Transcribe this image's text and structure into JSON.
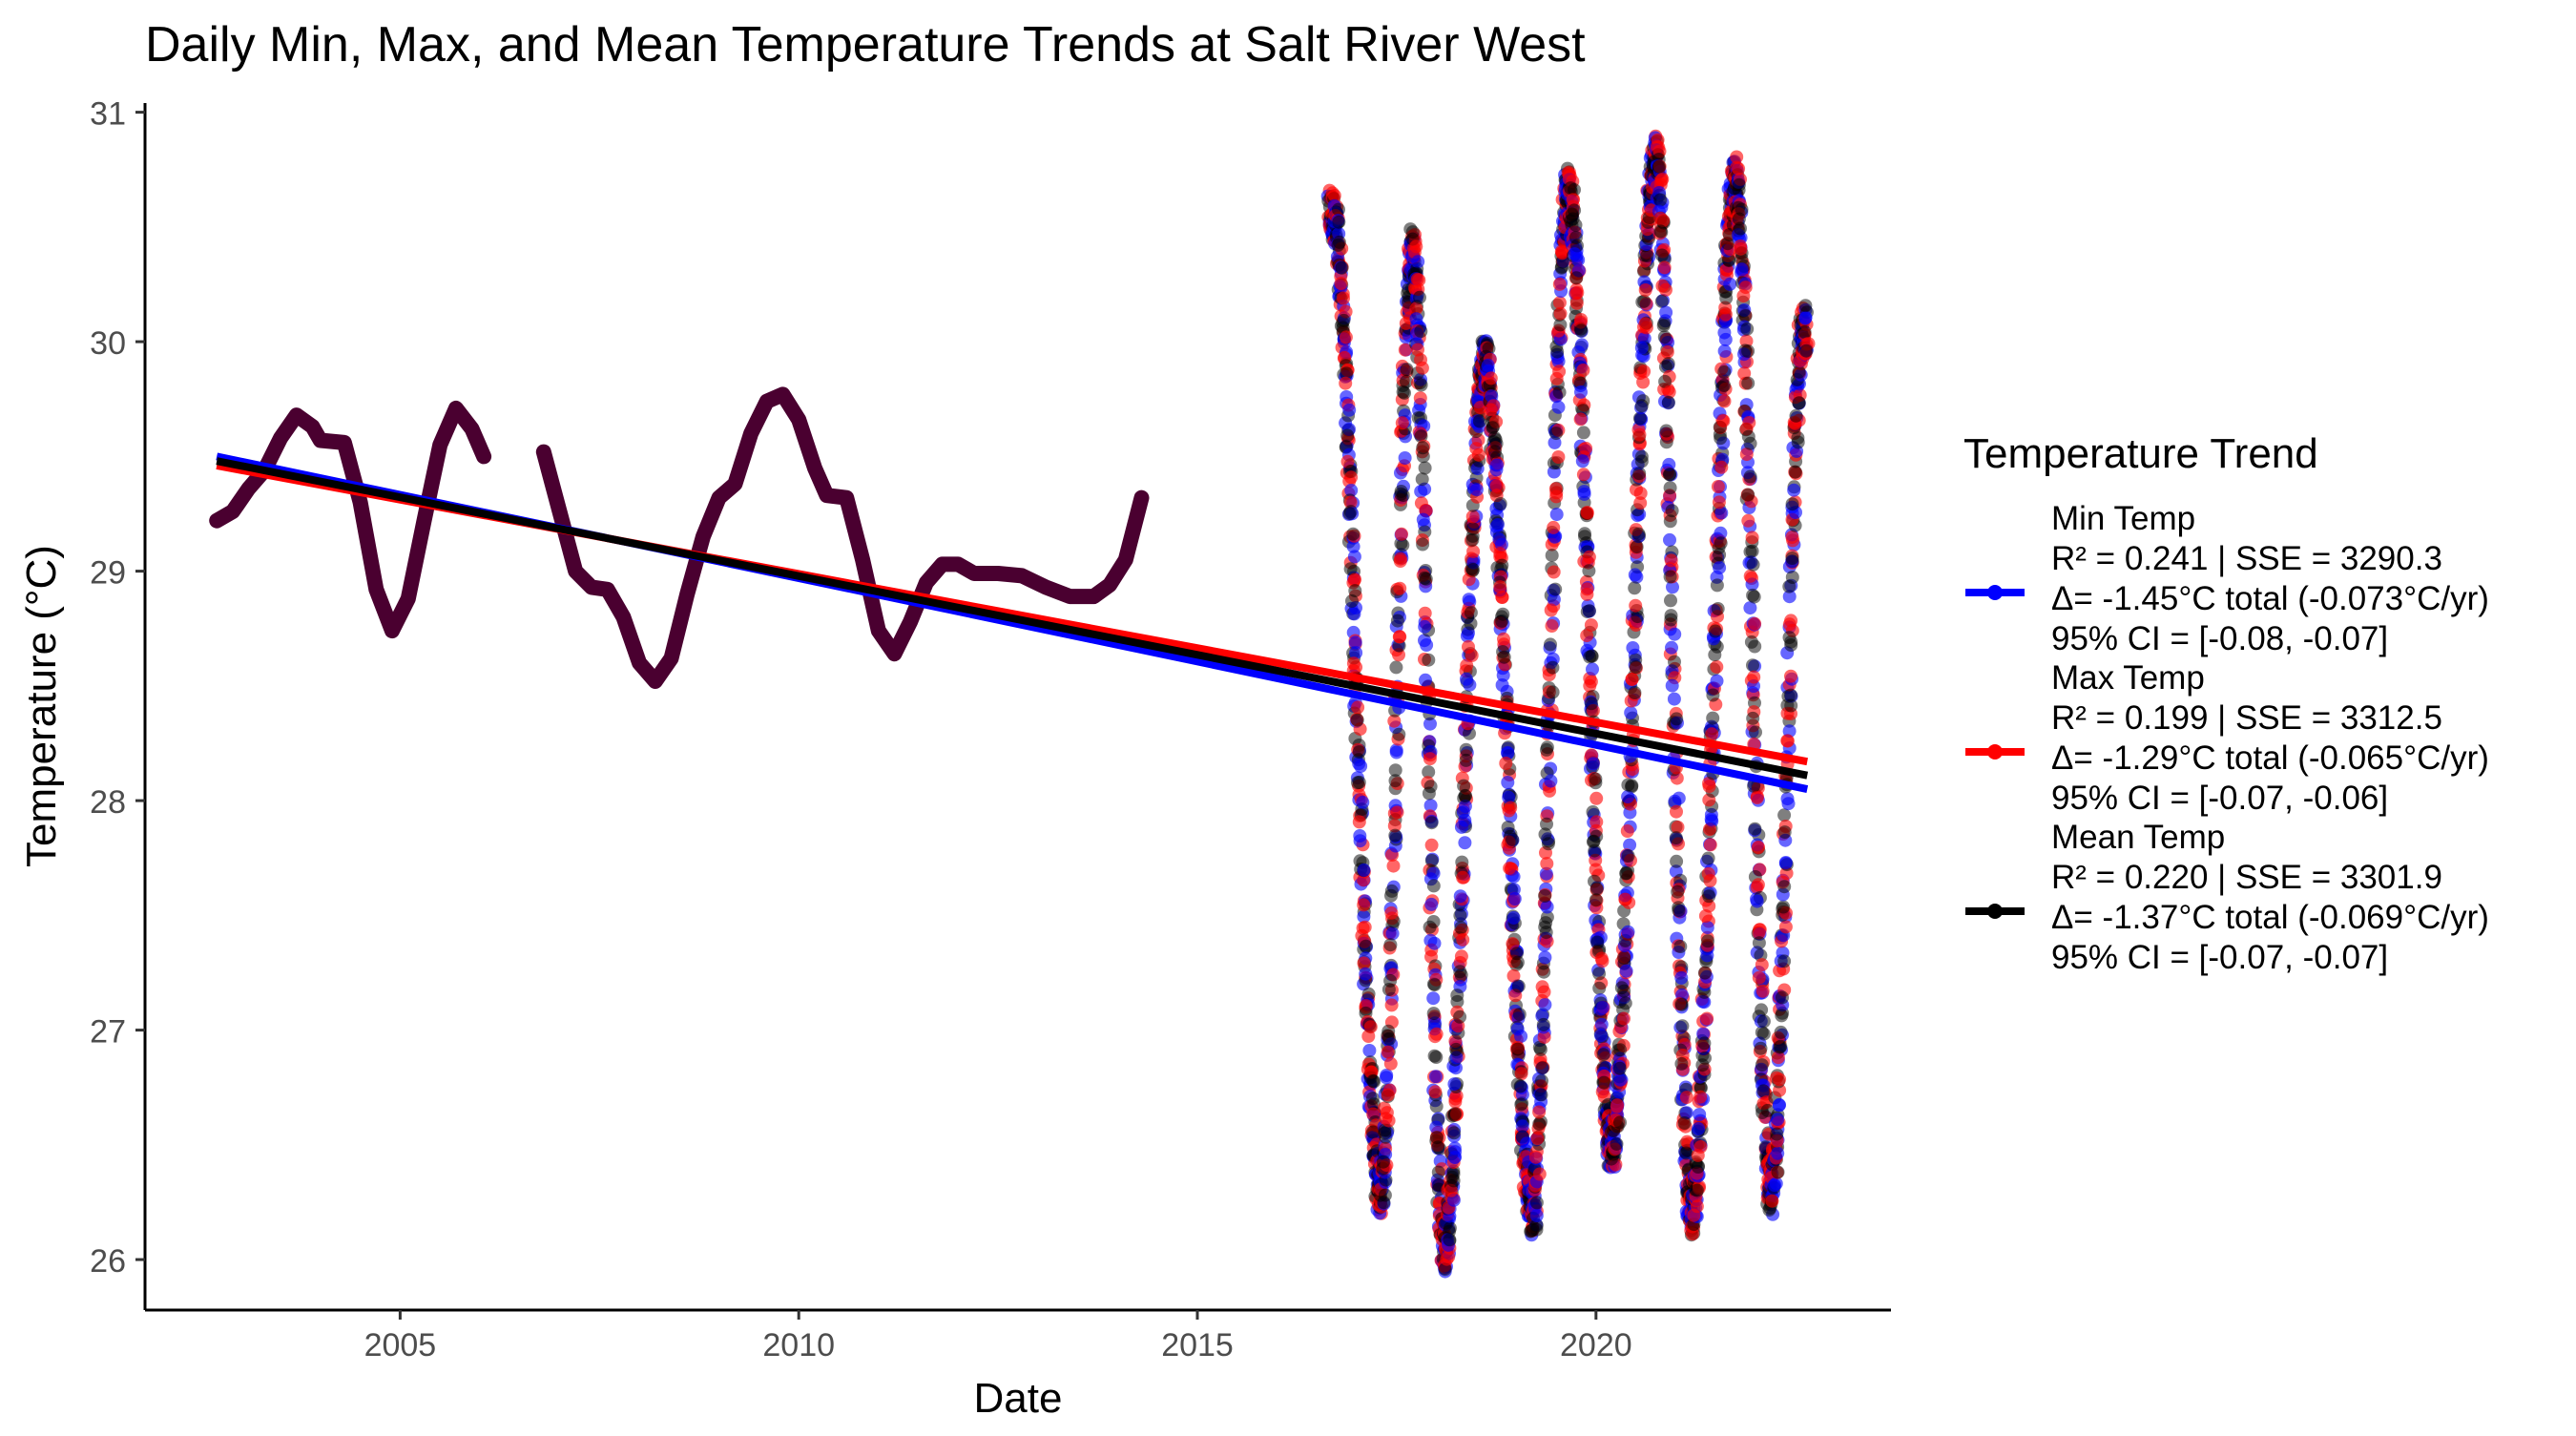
{
  "chart_data": {
    "type": "scatter",
    "title": "Daily Min, Max, and Mean Temperature Trends at Salt River West",
    "xlabel": "Date",
    "ylabel": "Temperature (°C)",
    "xlim": [
      2001.8,
      2023.7
    ],
    "ylim": [
      25.78,
      31.04
    ],
    "x_ticks": [
      2005,
      2010,
      2015,
      2020
    ],
    "x_tick_labels": [
      "2005",
      "2010",
      "2015",
      "2020"
    ],
    "y_ticks": [
      26,
      27,
      28,
      29,
      30,
      31
    ],
    "y_tick_labels": [
      "26",
      "27",
      "28",
      "29",
      "30",
      "31"
    ],
    "grid": false,
    "legend": {
      "title": "Temperature Trend",
      "placement": "right",
      "entries": [
        {
          "key": "min",
          "name": "Min Temp",
          "line1": "R² = 0.241 | SSE = 3290.3",
          "line2": "Δ= -1.45°C total (-0.073°C/yr)",
          "line3": "95% CI = [-0.08, -0.07]",
          "color": "#0000ff"
        },
        {
          "key": "max",
          "name": "Max Temp",
          "line1": "R² = 0.199 | SSE = 3312.5",
          "line2": "Δ= -1.29°C total (-0.065°C/yr)",
          "line3": "95% CI = [-0.07, -0.06]",
          "color": "#ff0000"
        },
        {
          "key": "mean",
          "name": "Mean Temp",
          "line1": "R² = 0.220 | SSE = 3301.9",
          "line2": "Δ= -1.37°C total (-0.069°C/yr)",
          "line3": "95% CI = [-0.07, -0.07]",
          "color": "#000000"
        }
      ]
    },
    "early_period_combined_color": "#4a0030",
    "early_period_curve": [
      {
        "x": 2002.7,
        "y": 29.22
      },
      {
        "x": 2002.9,
        "y": 29.26
      },
      {
        "x": 2003.1,
        "y": 29.36
      },
      {
        "x": 2003.3,
        "y": 29.44
      },
      {
        "x": 2003.5,
        "y": 29.58
      },
      {
        "x": 2003.7,
        "y": 29.68
      },
      {
        "x": 2003.9,
        "y": 29.63
      },
      {
        "x": 2004.0,
        "y": 29.57
      },
      {
        "x": 2004.3,
        "y": 29.56
      },
      {
        "x": 2004.5,
        "y": 29.3
      },
      {
        "x": 2004.7,
        "y": 28.92
      },
      {
        "x": 2004.9,
        "y": 28.74
      },
      {
        "x": 2005.1,
        "y": 28.88
      },
      {
        "x": 2005.3,
        "y": 29.22
      },
      {
        "x": 2005.5,
        "y": 29.55
      },
      {
        "x": 2005.7,
        "y": 29.71
      },
      {
        "x": 2005.9,
        "y": 29.62
      },
      {
        "x": 2006.05,
        "y": 29.5
      },
      {
        "x": 2006.8,
        "y": 29.52
      },
      {
        "x": 2007.0,
        "y": 29.26
      },
      {
        "x": 2007.2,
        "y": 29.0
      },
      {
        "x": 2007.4,
        "y": 28.93
      },
      {
        "x": 2007.6,
        "y": 28.92
      },
      {
        "x": 2007.8,
        "y": 28.8
      },
      {
        "x": 2008.0,
        "y": 28.6
      },
      {
        "x": 2008.2,
        "y": 28.52
      },
      {
        "x": 2008.4,
        "y": 28.62
      },
      {
        "x": 2008.6,
        "y": 28.9
      },
      {
        "x": 2008.8,
        "y": 29.15
      },
      {
        "x": 2009.0,
        "y": 29.32
      },
      {
        "x": 2009.2,
        "y": 29.38
      },
      {
        "x": 2009.4,
        "y": 29.6
      },
      {
        "x": 2009.6,
        "y": 29.74
      },
      {
        "x": 2009.8,
        "y": 29.77
      },
      {
        "x": 2010.0,
        "y": 29.66
      },
      {
        "x": 2010.2,
        "y": 29.45
      },
      {
        "x": 2010.35,
        "y": 29.33
      },
      {
        "x": 2010.6,
        "y": 29.32
      },
      {
        "x": 2010.8,
        "y": 29.05
      },
      {
        "x": 2011.0,
        "y": 28.74
      },
      {
        "x": 2011.2,
        "y": 28.64
      },
      {
        "x": 2011.4,
        "y": 28.78
      },
      {
        "x": 2011.6,
        "y": 28.95
      },
      {
        "x": 2011.8,
        "y": 29.03
      },
      {
        "x": 2012.0,
        "y": 29.03
      },
      {
        "x": 2012.2,
        "y": 28.99
      },
      {
        "x": 2012.5,
        "y": 28.99
      },
      {
        "x": 2012.8,
        "y": 28.98
      },
      {
        "x": 2013.1,
        "y": 28.93
      },
      {
        "x": 2013.4,
        "y": 28.89
      },
      {
        "x": 2013.7,
        "y": 28.89
      },
      {
        "x": 2013.9,
        "y": 28.94
      },
      {
        "x": 2014.1,
        "y": 29.05
      },
      {
        "x": 2014.3,
        "y": 29.32
      }
    ],
    "scatter_period": {
      "x_start": 2016.65,
      "x_end": 2022.65,
      "oscillation_peaks": [
        {
          "x": 2016.7,
          "y": 30.55
        },
        {
          "x": 2017.3,
          "y": 26.3
        },
        {
          "x": 2017.7,
          "y": 30.4
        },
        {
          "x": 2018.1,
          "y": 26.05
        },
        {
          "x": 2018.6,
          "y": 29.9
        },
        {
          "x": 2019.2,
          "y": 26.2
        },
        {
          "x": 2019.65,
          "y": 30.65
        },
        {
          "x": 2020.2,
          "y": 26.5
        },
        {
          "x": 2020.75,
          "y": 30.8
        },
        {
          "x": 2021.2,
          "y": 26.2
        },
        {
          "x": 2021.75,
          "y": 30.7
        },
        {
          "x": 2022.2,
          "y": 26.3
        },
        {
          "x": 2022.6,
          "y": 30.05
        }
      ]
    },
    "series": [
      {
        "name": "Min Temp",
        "color": "#0000ff",
        "trend": {
          "x": [
            2002.7,
            2022.65
          ],
          "y": [
            29.5,
            28.05
          ]
        }
      },
      {
        "name": "Max Temp",
        "color": "#ff0000",
        "trend": {
          "x": [
            2002.7,
            2022.65
          ],
          "y": [
            29.46,
            28.17
          ]
        }
      },
      {
        "name": "Mean Temp",
        "color": "#000000",
        "trend": {
          "x": [
            2002.7,
            2022.65
          ],
          "y": [
            29.48,
            28.11
          ]
        }
      }
    ]
  }
}
